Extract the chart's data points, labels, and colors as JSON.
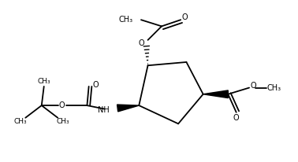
{
  "bg_color": "#ffffff",
  "line_color": "#000000",
  "lw": 1.3,
  "figsize": [
    3.78,
    2.06
  ],
  "dpi": 100,
  "xlim": [
    0,
    10
  ],
  "ylim": [
    0,
    5.5
  ]
}
